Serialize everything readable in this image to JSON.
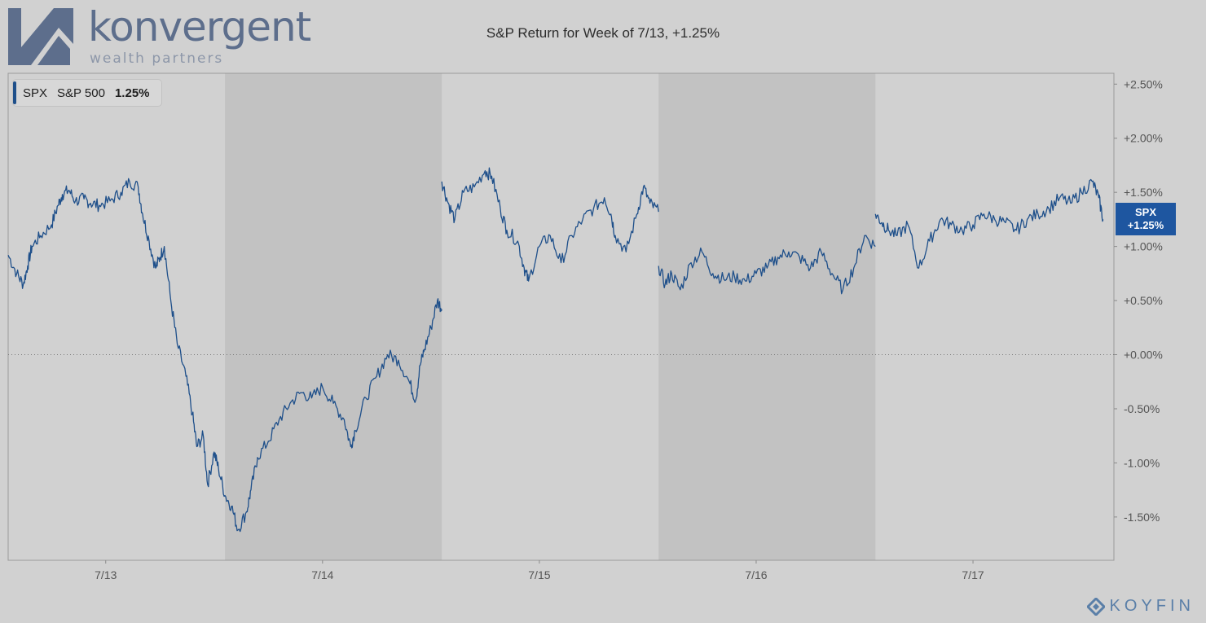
{
  "logo": {
    "name": "konvergent",
    "tagline": "wealth partners"
  },
  "watermark": "KOYFIN",
  "legend": {
    "ticker": "SPX",
    "name": "S&P 500",
    "value": "1.25%"
  },
  "price_tag": {
    "ticker": "SPX",
    "value": "+1.25%"
  },
  "colors": {
    "line": "#1e4f8a",
    "accent": "#1e56a0",
    "background": "#d1d1d1",
    "shade": "#c2c2c2"
  },
  "chart_data": {
    "type": "line",
    "title": "S&P Return for Week of 7/13, +1.25%",
    "xlabel": "",
    "ylabel": "",
    "x_unit": "trading day index (0 = 7/13 open)",
    "x_tick_labels": [
      "7/13",
      "7/14",
      "7/15",
      "7/16",
      "7/17"
    ],
    "x_tick_positions": [
      0.45,
      1.45,
      2.45,
      3.45,
      4.45
    ],
    "shaded_days": [
      1,
      3
    ],
    "xlim": [
      0,
      5.1
    ],
    "ylim": [
      -1.9,
      2.6
    ],
    "y_ticks": [
      2.5,
      2.0,
      1.5,
      1.0,
      0.5,
      0.0,
      -0.5,
      -1.0,
      -1.5
    ],
    "y_tick_labels": [
      "+2.50%",
      "+2.00%",
      "+1.50%",
      "+1.00%",
      "+0.50%",
      "+0.00%",
      "-0.50%",
      "-1.00%",
      "-1.50%"
    ],
    "zero_line": 0.0,
    "series": [
      {
        "name": "SPX",
        "segments": [
          {
            "x": [
              0,
              0.04,
              0.07,
              0.09,
              0.11,
              0.15,
              0.2,
              0.23,
              0.25,
              0.28,
              0.31,
              0.35,
              0.38,
              0.42,
              0.47,
              0.52,
              0.56,
              0.6,
              0.62,
              0.65,
              0.68,
              0.7,
              0.72,
              0.75,
              0.78,
              0.82,
              0.85,
              0.87,
              0.9,
              0.92,
              0.95,
              0.97,
              1.0
            ],
            "y": [
              0.92,
              0.75,
              0.65,
              0.82,
              1.0,
              1.1,
              1.2,
              1.38,
              1.48,
              1.52,
              1.42,
              1.44,
              1.4,
              1.38,
              1.42,
              1.5,
              1.6,
              1.55,
              1.3,
              1.05,
              0.8,
              0.9,
              1.0,
              0.5,
              0.1,
              -0.2,
              -0.55,
              -0.85,
              -0.75,
              -1.2,
              -0.9,
              -1.05,
              -1.3
            ]
          },
          {
            "x": [
              1.0,
              1.03,
              1.06,
              1.1,
              1.12,
              1.15,
              1.2,
              1.25,
              1.3,
              1.35,
              1.4,
              1.45,
              1.5,
              1.55,
              1.58,
              1.6,
              1.65,
              1.7,
              1.75,
              1.8,
              1.85,
              1.88,
              1.9,
              1.92,
              1.95,
              1.98,
              2.0
            ],
            "y": [
              -1.3,
              -1.4,
              -1.62,
              -1.45,
              -1.25,
              -0.95,
              -0.8,
              -0.6,
              -0.45,
              -0.35,
              -0.4,
              -0.3,
              -0.45,
              -0.6,
              -0.85,
              -0.7,
              -0.4,
              -0.2,
              0.0,
              -0.05,
              -0.25,
              -0.42,
              -0.1,
              0.05,
              0.25,
              0.5,
              0.42
            ]
          },
          {
            "x": [
              2.0,
              2.03,
              2.06,
              2.1,
              2.15,
              2.2,
              2.23,
              2.27,
              2.3,
              2.35,
              2.38,
              2.4,
              2.45,
              2.5,
              2.55,
              2.6,
              2.65,
              2.7,
              2.75,
              2.78,
              2.8,
              2.85,
              2.9,
              2.93,
              2.96,
              3.0
            ],
            "y": [
              1.6,
              1.4,
              1.25,
              1.5,
              1.55,
              1.7,
              1.65,
              1.35,
              1.15,
              1.05,
              0.8,
              0.68,
              1.0,
              1.1,
              0.85,
              1.1,
              1.25,
              1.35,
              1.45,
              1.3,
              1.1,
              0.95,
              1.3,
              1.55,
              1.4,
              1.32
            ]
          },
          {
            "x": [
              3.0,
              3.03,
              3.06,
              3.1,
              3.15,
              3.2,
              3.25,
              3.3,
              3.35,
              3.4,
              3.45,
              3.5,
              3.55,
              3.6,
              3.65,
              3.7,
              3.75,
              3.8,
              3.85,
              3.9,
              3.95,
              4.0
            ],
            "y": [
              0.82,
              0.65,
              0.75,
              0.6,
              0.85,
              0.95,
              0.75,
              0.7,
              0.72,
              0.68,
              0.75,
              0.8,
              0.9,
              0.95,
              0.9,
              0.8,
              0.95,
              0.75,
              0.6,
              0.8,
              1.1,
              1.0
            ]
          },
          {
            "x": [
              4.0,
              4.03,
              4.06,
              4.1,
              4.15,
              4.2,
              4.25,
              4.3,
              4.35,
              4.4,
              4.45,
              4.5,
              4.55,
              4.6,
              4.65,
              4.7,
              4.75,
              4.8,
              4.85,
              4.9,
              4.95,
              5.0,
              5.03,
              5.05
            ],
            "y": [
              1.3,
              1.22,
              1.15,
              1.1,
              1.2,
              0.8,
              1.05,
              1.25,
              1.2,
              1.15,
              1.2,
              1.3,
              1.25,
              1.22,
              1.15,
              1.25,
              1.3,
              1.35,
              1.45,
              1.4,
              1.5,
              1.6,
              1.45,
              1.25
            ]
          }
        ]
      }
    ]
  }
}
